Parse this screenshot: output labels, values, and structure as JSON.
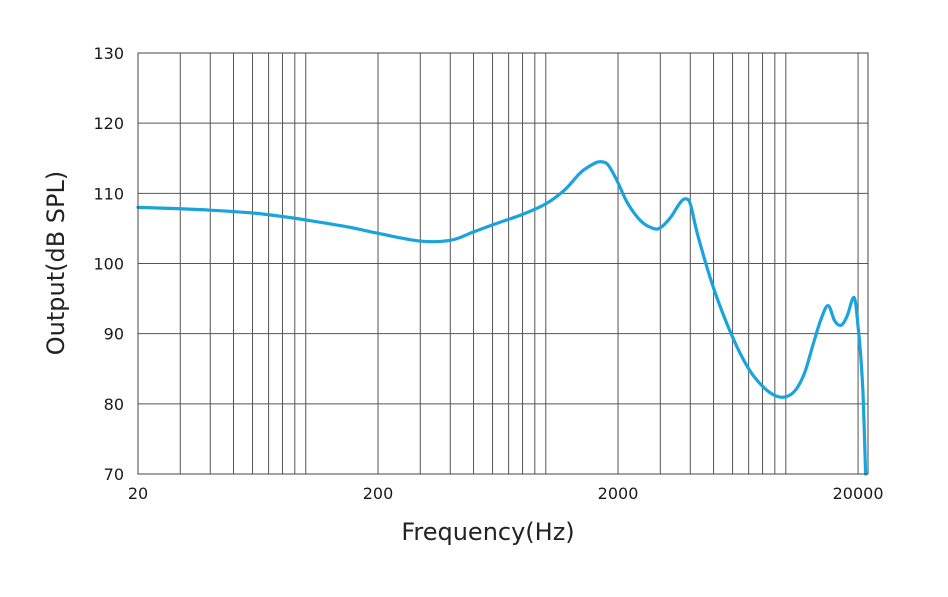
{
  "chart_data": {
    "type": "line",
    "title": "",
    "xlabel": "Frequency(Hz)",
    "ylabel": "Output(dB SPL)",
    "x_scale": "log",
    "xlim": [
      20,
      22000
    ],
    "ylim": [
      70,
      130
    ],
    "x_tick_labels": [
      "20",
      "200",
      "2000",
      "20000"
    ],
    "x_ticks": [
      20,
      200,
      2000,
      20000
    ],
    "y_ticks": [
      70,
      80,
      90,
      100,
      110,
      120,
      130
    ],
    "y_tick_labels": [
      "70",
      "80",
      "90",
      "100",
      "110",
      "120",
      "130"
    ],
    "grid": true,
    "legend": "none",
    "line_color": "#1aa3dc",
    "series": [
      {
        "x": [
          20,
          30,
          40,
          60,
          80,
          100,
          150,
          200,
          300,
          400,
          500,
          600,
          700,
          800,
          1000,
          1200,
          1400,
          1600,
          1700,
          1800,
          1900,
          2000,
          2200,
          2500,
          2800,
          3000,
          3300,
          3600,
          3800,
          4000,
          4300,
          5000,
          6000,
          7000,
          8000,
          9000,
          10000,
          11000,
          12000,
          13000,
          14000,
          15000,
          16000,
          17000,
          18000,
          19000,
          19500,
          20000,
          20500,
          21000,
          21500
        ],
        "y": [
          108,
          107.8,
          107.6,
          107.2,
          106.7,
          106.2,
          105.2,
          104.3,
          103.2,
          103.3,
          104.5,
          105.5,
          106.3,
          107,
          108.5,
          110.5,
          113,
          114.3,
          114.5,
          114.2,
          113,
          111.5,
          108.5,
          106,
          105,
          105.1,
          106.5,
          108.5,
          109.2,
          108.5,
          104,
          96.5,
          89.5,
          85,
          82.5,
          81.2,
          81,
          82,
          84.5,
          88.5,
          92,
          94,
          91.8,
          91.2,
          92.5,
          95,
          94.5,
          91,
          87,
          81,
          70
        ]
      }
    ]
  }
}
